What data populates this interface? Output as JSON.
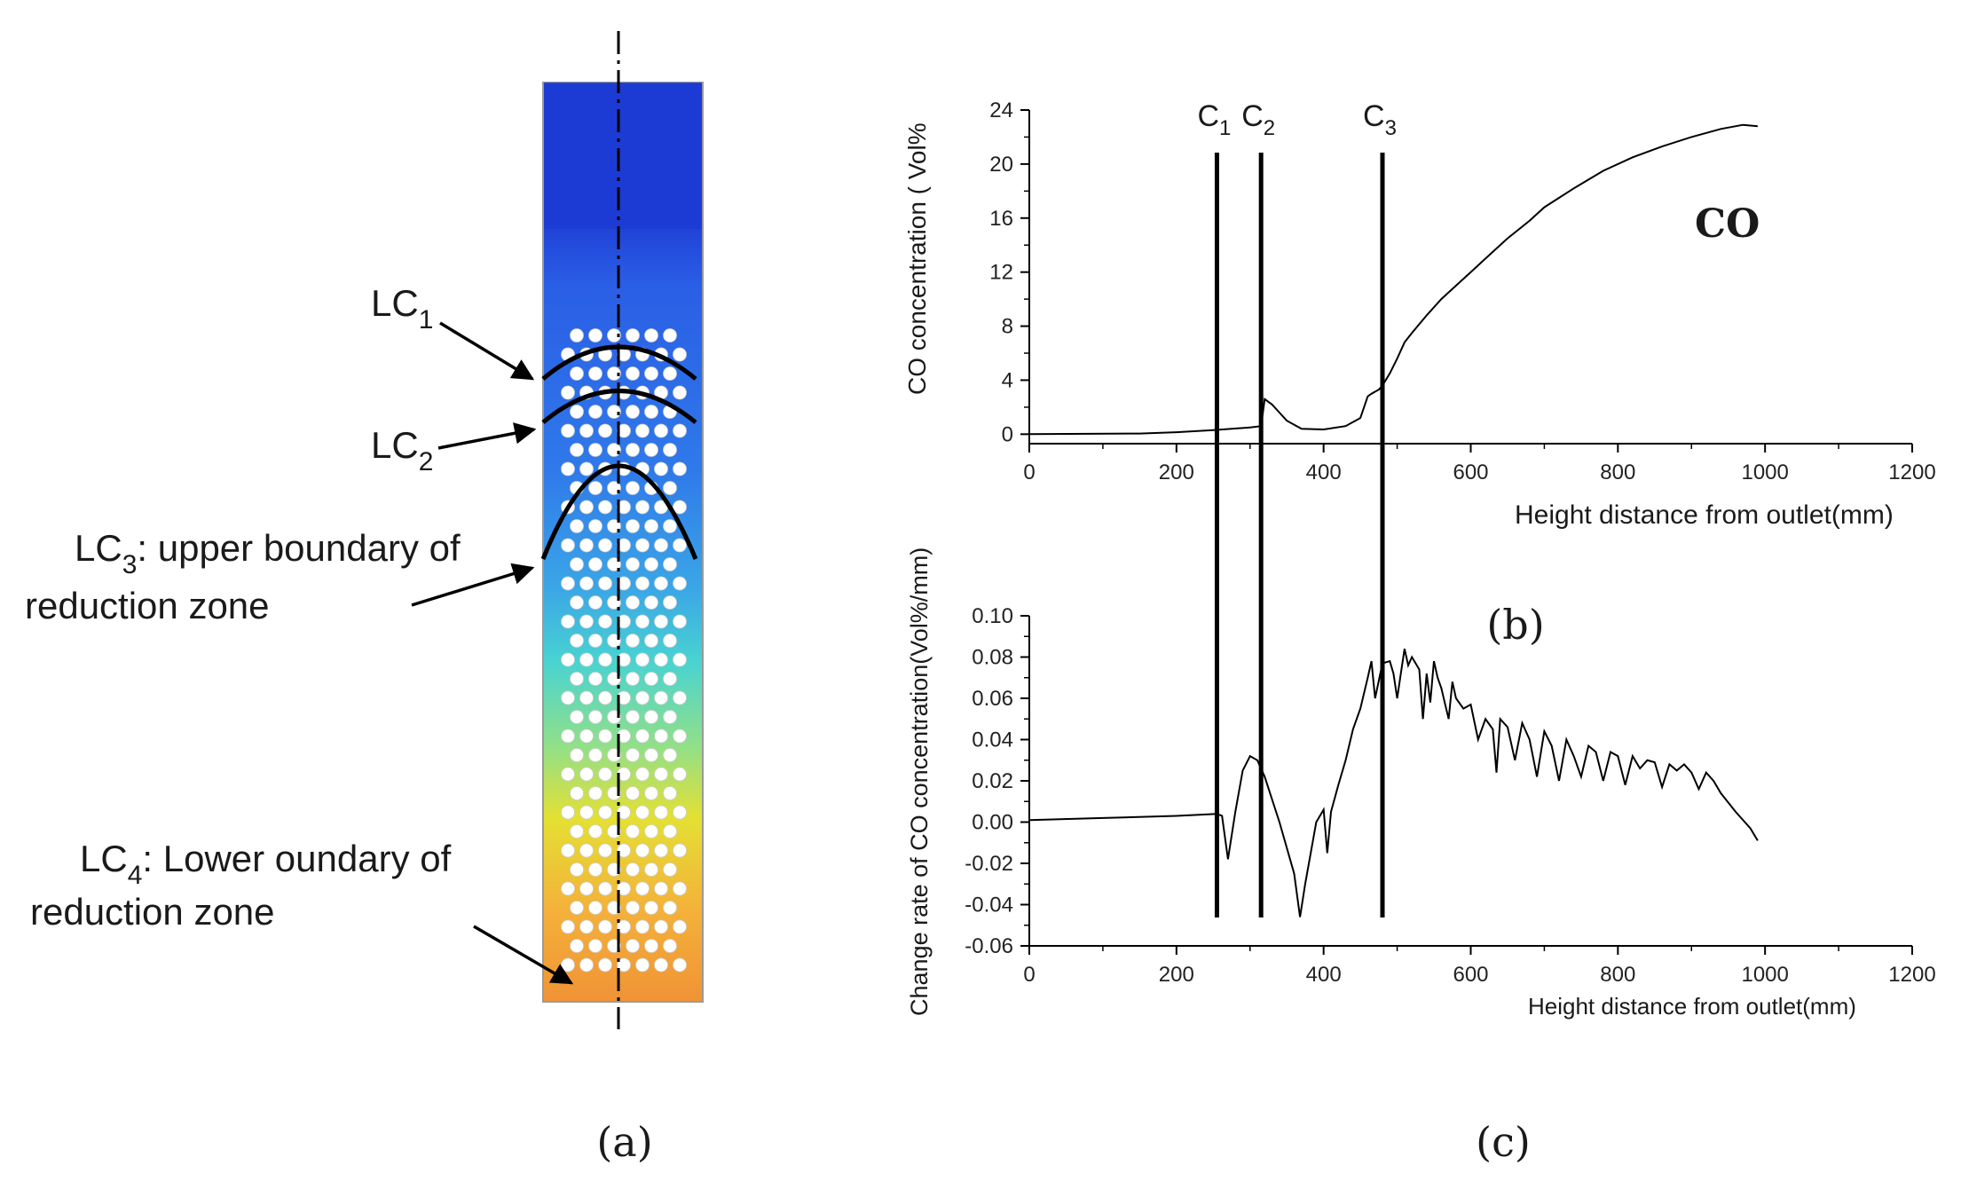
{
  "panel_a": {
    "caption": "(a)",
    "annotations": {
      "lc1": {
        "main": "LC",
        "sub": "1"
      },
      "lc2": {
        "main": "LC",
        "sub": "2"
      },
      "lc3": {
        "main": "LC",
        "sub": "3",
        "text": ": upper boundary  of",
        "line2": "reduction zone"
      },
      "lc4": {
        "main": "LC",
        "sub": "4",
        "text": ": Lower oundary of",
        "line2": "reduction zone"
      }
    },
    "gradient_colors": [
      "#1f3fd6",
      "#2a5ee6",
      "#2f79ea",
      "#3aa6e6",
      "#49d3d1",
      "#8fe08a",
      "#e4e033",
      "#f4b13a",
      "#f09335"
    ]
  },
  "panel_b_label": "(b)",
  "panel_c_caption": "(c)",
  "chart_data": [
    {
      "type": "line",
      "title": "",
      "series_label": "CO",
      "xlabel": "Height distance from outlet(mm)",
      "ylabel": "CO concentration ( Vol%",
      "xlim": [
        0,
        1200
      ],
      "ylim": [
        -0.7,
        24
      ],
      "xticks": [
        0,
        200,
        400,
        600,
        800,
        1000,
        1200
      ],
      "yticks": [
        0,
        4,
        8,
        12,
        16,
        20,
        24
      ],
      "markers": [
        {
          "label": "C",
          "sub": "1",
          "x": 255
        },
        {
          "label": "C",
          "sub": "2",
          "x": 315
        },
        {
          "label": "C",
          "sub": "3",
          "x": 480
        }
      ],
      "x": [
        0,
        150,
        200,
        250,
        300,
        315,
        320,
        330,
        340,
        350,
        370,
        400,
        430,
        450,
        460,
        465,
        475,
        480,
        490,
        500,
        510,
        520,
        540,
        560,
        580,
        600,
        620,
        650,
        680,
        700,
        740,
        780,
        820,
        860,
        900,
        940,
        970,
        990
      ],
      "y": [
        0.0,
        0.05,
        0.15,
        0.3,
        0.5,
        0.6,
        2.6,
        2.2,
        1.6,
        1.0,
        0.4,
        0.35,
        0.6,
        1.2,
        2.8,
        3.0,
        3.3,
        3.6,
        4.5,
        5.6,
        6.8,
        7.5,
        8.8,
        10.0,
        11.0,
        12.0,
        13.0,
        14.5,
        15.8,
        16.8,
        18.2,
        19.5,
        20.5,
        21.3,
        22.0,
        22.6,
        22.9,
        22.8
      ]
    },
    {
      "type": "line",
      "title": "",
      "xlabel": "Height distance from outlet(mm)",
      "ylabel": "Change rate of CO concentration(Vol%/mm)",
      "xlim": [
        0,
        1200
      ],
      "ylim": [
        -0.06,
        0.1
      ],
      "xticks": [
        0,
        200,
        400,
        600,
        800,
        1000,
        1200
      ],
      "yticks": [
        0.1,
        0.08,
        0.06,
        0.04,
        0.02,
        0.0,
        -0.02,
        -0.04,
        -0.06
      ],
      "ytick_labels": [
        "0.10",
        "0.08",
        "0.06",
        "0.04",
        "0.02",
        "0.00",
        "-0.02",
        "-0.04",
        "-0.06"
      ],
      "markers": [
        {
          "x": 255
        },
        {
          "x": 315
        },
        {
          "x": 480
        }
      ],
      "x": [
        0,
        100,
        200,
        255,
        262,
        270,
        280,
        290,
        300,
        310,
        320,
        340,
        360,
        368,
        375,
        390,
        400,
        405,
        410,
        420,
        430,
        440,
        450,
        460,
        465,
        470,
        480,
        490,
        495,
        500,
        505,
        510,
        515,
        520,
        530,
        535,
        540,
        545,
        550,
        555,
        560,
        570,
        575,
        580,
        590,
        600,
        610,
        620,
        630,
        635,
        640,
        650,
        660,
        670,
        680,
        690,
        700,
        710,
        720,
        730,
        740,
        750,
        760,
        770,
        780,
        790,
        800,
        810,
        820,
        830,
        840,
        850,
        860,
        870,
        880,
        890,
        900,
        910,
        920,
        930,
        940,
        960,
        980,
        990
      ],
      "y": [
        0.001,
        0.002,
        0.003,
        0.004,
        0.003,
        -0.018,
        0.005,
        0.025,
        0.032,
        0.03,
        0.022,
        0.0,
        -0.025,
        -0.046,
        -0.03,
        0.0,
        0.006,
        -0.015,
        0.005,
        0.018,
        0.03,
        0.045,
        0.055,
        0.07,
        0.078,
        0.06,
        0.077,
        0.078,
        0.072,
        0.06,
        0.072,
        0.084,
        0.076,
        0.08,
        0.074,
        0.05,
        0.072,
        0.058,
        0.078,
        0.07,
        0.065,
        0.05,
        0.068,
        0.06,
        0.055,
        0.057,
        0.04,
        0.05,
        0.045,
        0.024,
        0.05,
        0.046,
        0.03,
        0.048,
        0.04,
        0.022,
        0.044,
        0.037,
        0.02,
        0.04,
        0.032,
        0.022,
        0.037,
        0.034,
        0.02,
        0.034,
        0.032,
        0.018,
        0.032,
        0.026,
        0.03,
        0.029,
        0.017,
        0.028,
        0.025,
        0.028,
        0.024,
        0.016,
        0.024,
        0.02,
        0.014,
        0.005,
        -0.003,
        -0.009
      ]
    }
  ]
}
